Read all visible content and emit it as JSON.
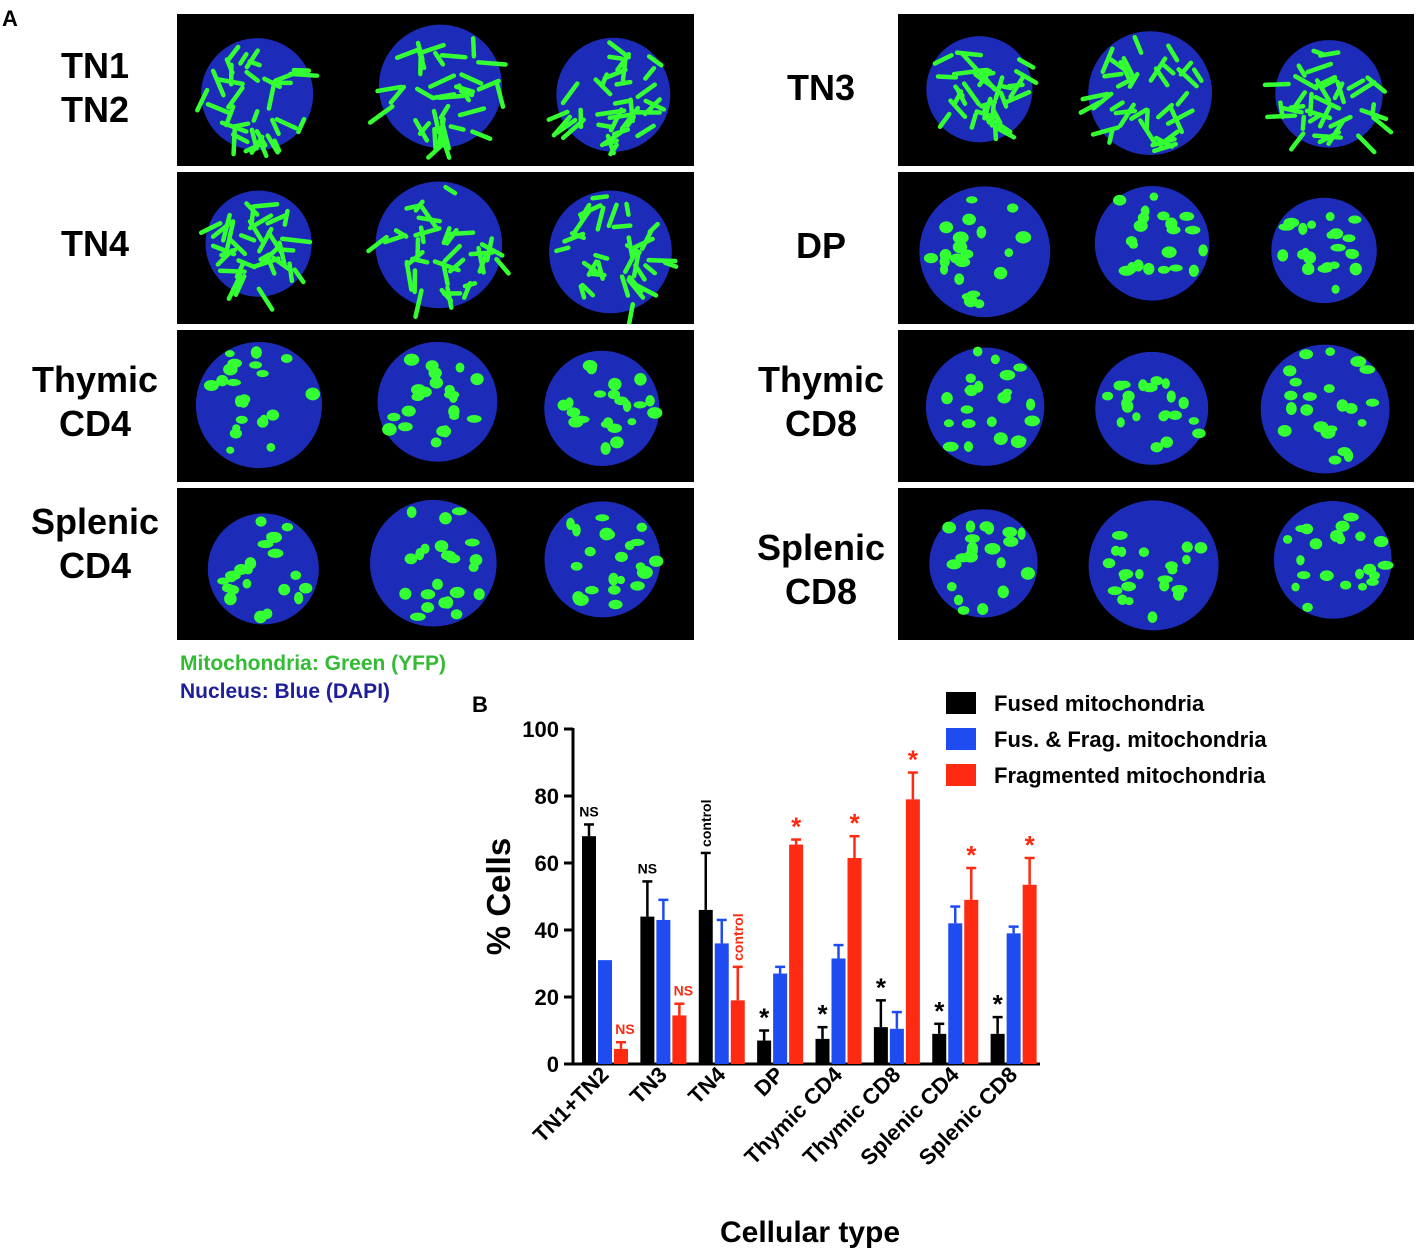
{
  "panel_a": {
    "letter": "A",
    "rows_left": [
      {
        "label_lines": [
          "TN1",
          "TN2"
        ]
      },
      {
        "label_lines": [
          "TN4"
        ]
      },
      {
        "label_lines": [
          "Thymic",
          "CD4"
        ]
      },
      {
        "label_lines": [
          "Splenic",
          "CD4"
        ]
      }
    ],
    "rows_right": [
      {
        "label_lines": [
          "TN3"
        ]
      },
      {
        "label_lines": [
          "DP"
        ]
      },
      {
        "label_lines": [
          "Thymic",
          "CD8"
        ]
      },
      {
        "label_lines": [
          "Splenic",
          "CD8"
        ]
      }
    ],
    "legend": {
      "mito": {
        "text": "Mitochondria: Green (YFP)",
        "color": "#33bb33"
      },
      "nucleus": {
        "text": "Nucleus: Blue (DAPI)",
        "color": "#1e1e9a"
      }
    },
    "colors": {
      "mito": "#33ff33",
      "nucleus": "#1c2cb8",
      "background": "#000000"
    }
  },
  "panel_b": {
    "letter": "B",
    "chart_data": {
      "type": "bar",
      "xlabel": "Cellular type",
      "ylabel": "% Cells",
      "ylim": [
        0,
        100
      ],
      "yticks": [
        0,
        20,
        40,
        60,
        80,
        100
      ],
      "categories": [
        "TN1+TN2",
        "TN3",
        "TN4",
        "DP",
        "Thymic CD4",
        "Thymic CD8",
        "Splenic CD4",
        "Splenic CD8"
      ],
      "series": [
        {
          "name": "Fused mitochondria",
          "color": "#000000",
          "values": [
            68,
            44,
            46,
            7,
            7.5,
            11,
            9,
            9
          ],
          "errors": [
            3.5,
            10.5,
            17,
            3,
            3.5,
            8,
            3,
            5
          ],
          "annotations": [
            "NS",
            "NS",
            "control",
            "*",
            "*",
            "*",
            "*",
            "*"
          ],
          "annotation_color": "#000000"
        },
        {
          "name": "Fus. & Frag. mitochondria",
          "color": "#1f4cf0",
          "values": [
            31,
            43,
            36,
            27,
            31.5,
            10.5,
            42,
            39
          ],
          "errors": [
            0,
            6,
            7,
            2,
            4,
            5,
            5,
            2
          ],
          "annotations": [
            "",
            "",
            "",
            "",
            "",
            "",
            "",
            ""
          ],
          "annotation_color": "#1f4cf0"
        },
        {
          "name": "Fragmented mitochondria",
          "color": "#ff2a12",
          "values": [
            4.5,
            14.5,
            19,
            65.5,
            61.5,
            79,
            49,
            53.5
          ],
          "errors": [
            2,
            3.5,
            10,
            1.5,
            6.5,
            8,
            9.5,
            8
          ],
          "annotations": [
            "NS",
            "NS",
            "control",
            "*",
            "*",
            "*",
            "*",
            "*"
          ],
          "annotation_color": "#ff2a12"
        }
      ],
      "legend_position": "top-right"
    }
  }
}
